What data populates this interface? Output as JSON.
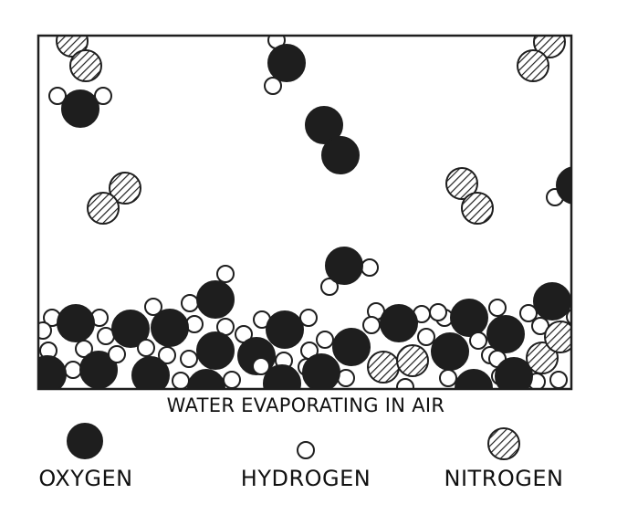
{
  "figure": {
    "caption": "WATER EVAPORATING IN AIR"
  },
  "legend": [
    {
      "key": "oxygen",
      "label": "OXYGEN"
    },
    {
      "key": "hydrogen",
      "label": "HYDROGEN"
    },
    {
      "key": "nitrogen",
      "label": "NITROGEN"
    }
  ],
  "colors": {
    "oxygen_fill": "#1e1e1e",
    "hydrogen_fill": "#ffffff",
    "nitrogen_fill": "hatched",
    "outline": "#1e1e1e"
  }
}
